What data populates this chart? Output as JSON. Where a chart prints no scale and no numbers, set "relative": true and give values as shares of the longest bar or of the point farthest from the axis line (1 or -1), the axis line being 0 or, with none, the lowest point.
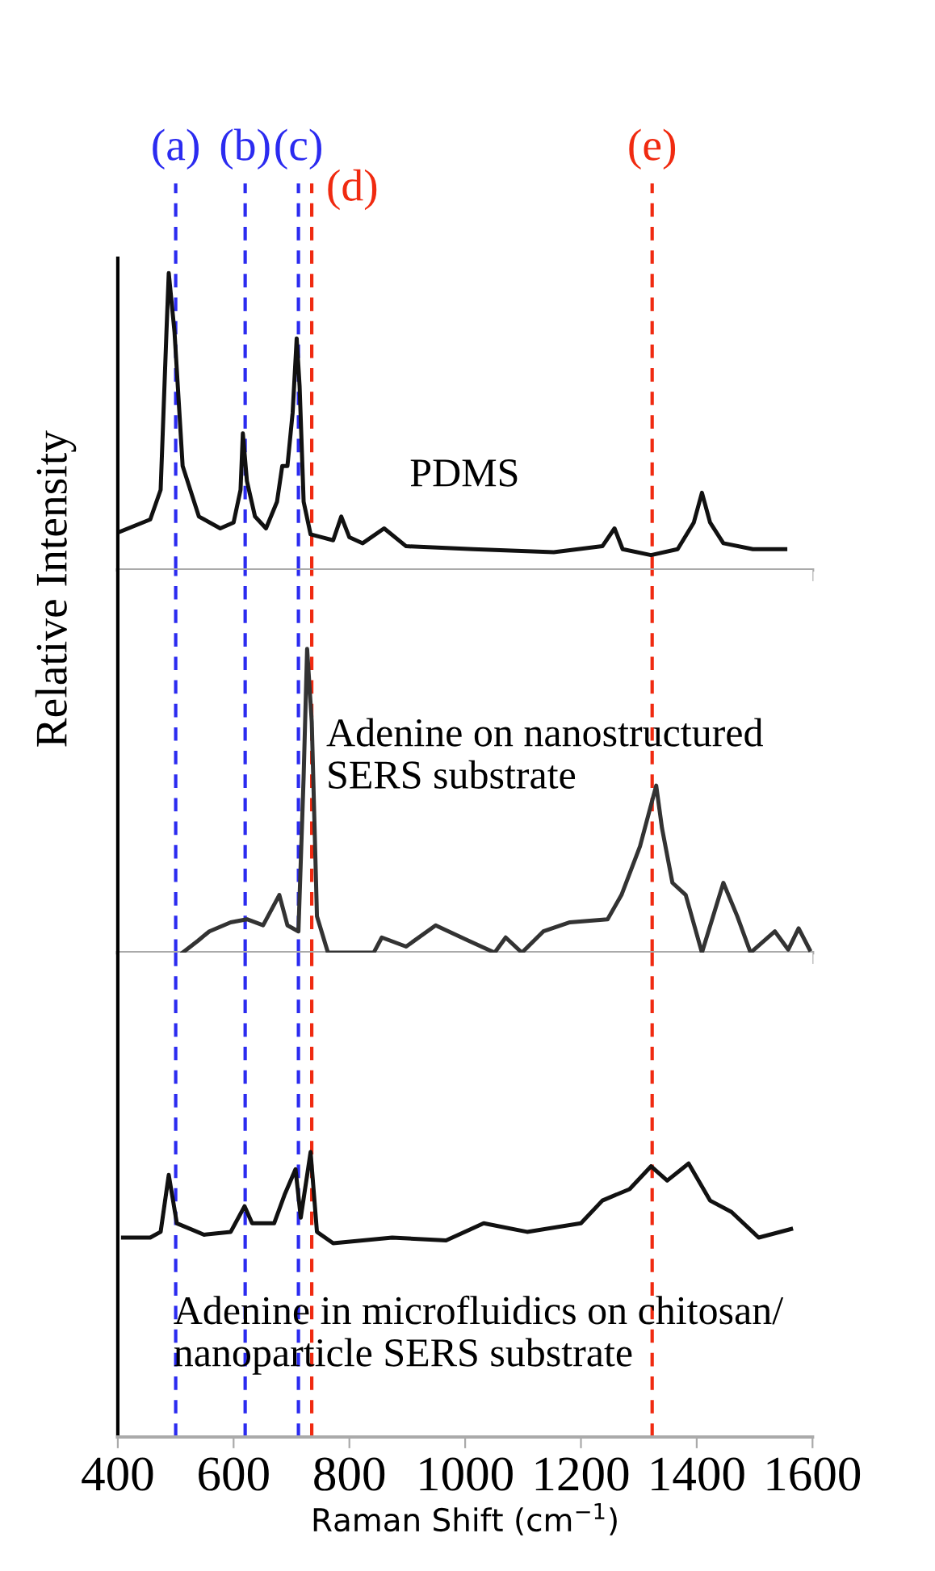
{
  "chart_data": [
    {
      "type": "line",
      "relative": true,
      "xlim": [
        400,
        1600
      ],
      "xticks": [
        400,
        600,
        800,
        1000,
        1200,
        1400,
        1600
      ],
      "tick_labels": false,
      "grid": false,
      "legend": false,
      "x": [
        405,
        456,
        474,
        484,
        488,
        498,
        512,
        540,
        577,
        600,
        612,
        616,
        623,
        637,
        656,
        675,
        684,
        693,
        702,
        709,
        714,
        721,
        733,
        753,
        772,
        786,
        800,
        823,
        860,
        898,
        1014,
        1153,
        1237,
        1258,
        1272,
        1321,
        1367,
        1395,
        1409,
        1423,
        1446,
        1497,
        1553
      ],
      "series": [
        {
          "name": "PDMS",
          "color": "#111111",
          "values": [
            0.13,
            0.17,
            0.27,
            0.8,
            1.0,
            0.8,
            0.35,
            0.18,
            0.14,
            0.16,
            0.27,
            0.46,
            0.3,
            0.18,
            0.14,
            0.23,
            0.35,
            0.35,
            0.53,
            0.78,
            0.62,
            0.23,
            0.12,
            0.11,
            0.1,
            0.18,
            0.11,
            0.09,
            0.14,
            0.08,
            0.07,
            0.06,
            0.08,
            0.14,
            0.07,
            0.05,
            0.07,
            0.16,
            0.26,
            0.16,
            0.09,
            0.07,
            0.07
          ]
        }
      ],
      "ref_lines": [
        {
          "axis": "x",
          "value": 500,
          "label": "(a)",
          "color": "#2b2bf0",
          "line_style": "dashed"
        },
        {
          "axis": "x",
          "value": 620,
          "label": "(b)",
          "color": "#2b2bf0",
          "line_style": "dashed"
        },
        {
          "axis": "x",
          "value": 712,
          "label": "(c)",
          "color": "#2b2bf0",
          "line_style": "dashed"
        },
        {
          "axis": "x",
          "value": 735,
          "label": "(d)",
          "color": "#f02a10",
          "line_style": "dashed"
        },
        {
          "axis": "x",
          "value": 1323,
          "label": "(e)",
          "color": "#f02a10",
          "line_style": "dashed"
        }
      ]
    },
    {
      "type": "line",
      "relative": true,
      "xlim": [
        400,
        1600
      ],
      "xticks": [
        400,
        600,
        800,
        1000,
        1200,
        1400,
        1600
      ],
      "tick_labels": false,
      "grid": false,
      "legend": false,
      "ylabel": "Relative Intensity",
      "x": [
        512,
        539,
        558,
        595,
        623,
        651,
        679,
        693,
        712,
        721,
        727,
        735,
        744,
        763,
        842,
        856,
        898,
        949,
        1005,
        1051,
        1070,
        1098,
        1135,
        1181,
        1246,
        1270,
        1302,
        1330,
        1340,
        1358,
        1381,
        1409,
        1446,
        1470,
        1493,
        1535,
        1558,
        1576,
        1595
      ],
      "series": [
        {
          "name": "Adenine on nanostructured\nSERS substrate",
          "color": "#333333",
          "values": [
            0,
            0.04,
            0.07,
            0.1,
            0.11,
            0.09,
            0.19,
            0.09,
            0.07,
            0.58,
            1.0,
            0.76,
            0.12,
            0,
            0,
            0.05,
            0.02,
            0.09,
            0.04,
            0,
            0.05,
            0,
            0.07,
            0.1,
            0.11,
            0.19,
            0.35,
            0.55,
            0.41,
            0.23,
            0.19,
            0,
            0.23,
            0.12,
            0,
            0.07,
            0.01,
            0.08,
            0.01
          ]
        }
      ],
      "ref_lines": [
        {
          "axis": "x",
          "value": 500,
          "color": "#2b2bf0",
          "line_style": "dashed"
        },
        {
          "axis": "x",
          "value": 620,
          "color": "#2b2bf0",
          "line_style": "dashed"
        },
        {
          "axis": "x",
          "value": 712,
          "color": "#2b2bf0",
          "line_style": "dashed"
        },
        {
          "axis": "x",
          "value": 735,
          "color": "#f02a10",
          "line_style": "dashed"
        },
        {
          "axis": "x",
          "value": 1323,
          "color": "#f02a10",
          "line_style": "dashed"
        }
      ]
    },
    {
      "type": "line",
      "relative": true,
      "xlim": [
        400,
        1600
      ],
      "xticks": [
        400,
        600,
        800,
        1000,
        1200,
        1400,
        1600
      ],
      "tick_labels": "x",
      "grid": false,
      "legend": false,
      "xlabel": "Raman Shift (cm$^{−1}$)",
      "x": [
        409,
        456,
        474,
        488,
        502,
        549,
        595,
        619,
        632,
        670,
        688,
        707,
        716,
        733,
        744,
        772,
        874,
        967,
        1032,
        1107,
        1200,
        1237,
        1284,
        1321,
        1349,
        1386,
        1423,
        1460,
        1507,
        1563
      ],
      "series": [
        {
          "name": "Adenine in microfluidics on chitosan/\nnanoparticle SERS substrate",
          "color": "#111111",
          "values": [
            0.7,
            0.7,
            0.72,
            0.92,
            0.75,
            0.71,
            0.72,
            0.81,
            0.75,
            0.75,
            0.85,
            0.94,
            0.77,
            1.0,
            0.72,
            0.68,
            0.7,
            0.69,
            0.75,
            0.72,
            0.75,
            0.83,
            0.87,
            0.95,
            0.9,
            0.96,
            0.83,
            0.79,
            0.7,
            0.73
          ]
        }
      ],
      "ref_lines": [
        {
          "axis": "x",
          "value": 500,
          "color": "#2b2bf0",
          "line_style": "dashed"
        },
        {
          "axis": "x",
          "value": 620,
          "color": "#2b2bf0",
          "line_style": "dashed"
        },
        {
          "axis": "x",
          "value": 712,
          "color": "#2b2bf0",
          "line_style": "dashed"
        },
        {
          "axis": "x",
          "value": 735,
          "color": "#f02a10",
          "line_style": "dashed"
        },
        {
          "axis": "x",
          "value": 1323,
          "color": "#f02a10",
          "line_style": "dashed"
        }
      ]
    }
  ]
}
